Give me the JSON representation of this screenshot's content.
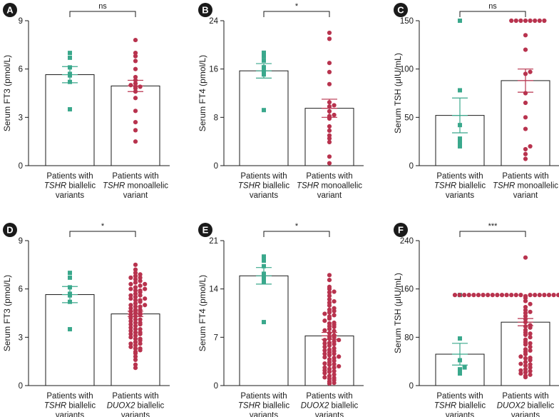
{
  "figure": {
    "colors": {
      "biallelic": "#3aa88c",
      "mono": "#b8334e",
      "badge": "#1a1a1a"
    }
  },
  "chart_data": [
    {
      "panel": "A",
      "type": "scatter-bar",
      "ylabel": "Serum FT3 (pmol/L)",
      "ylim": [
        0,
        9
      ],
      "yticks": [
        0,
        3,
        6,
        9
      ],
      "significance": "ns",
      "groups": [
        {
          "line1": "Patients with",
          "line2_italic": "TSHR",
          "line2_rest": " biallelic",
          "line3": "variants",
          "marker": "square",
          "color": "#3aa88c",
          "mean": 5.65,
          "sem": 0.5,
          "values": [
            7.0,
            6.7,
            6.1,
            5.7,
            5.6,
            5.2,
            3.5
          ]
        },
        {
          "line1": "Patients with",
          "line2_italic": "TSHR",
          "line2_rest": " monoallelic",
          "line3": "variant",
          "marker": "circle",
          "color": "#b8334e",
          "mean": 4.95,
          "sem": 0.35,
          "values": [
            7.8,
            7.0,
            6.8,
            6.5,
            6.0,
            5.5,
            5.3,
            5.1,
            5.0,
            4.9,
            4.9,
            4.8,
            4.6,
            4.2,
            3.4,
            2.7,
            2.2,
            1.5
          ]
        }
      ]
    },
    {
      "panel": "B",
      "type": "scatter-bar",
      "ylabel": "Serum FT4 (pmol/L)",
      "ylim": [
        0,
        24
      ],
      "yticks": [
        0,
        8,
        16,
        24
      ],
      "significance": "*",
      "groups": [
        {
          "line1": "Patients with",
          "line2_italic": "TSHR",
          "line2_rest": " biallelic",
          "line3": "variants",
          "marker": "square",
          "color": "#3aa88c",
          "mean": 15.7,
          "sem": 1.2,
          "values": [
            18.7,
            18.1,
            17.4,
            16.3,
            15.6,
            15.1,
            9.2
          ]
        },
        {
          "line1": "Patients with",
          "line2_italic": "TSHR",
          "line2_rest": " monoallelic",
          "line3": "variant",
          "marker": "circle",
          "color": "#b8334e",
          "mean": 9.5,
          "sem": 1.5,
          "values": [
            22.0,
            21.0,
            17.0,
            15.5,
            13.5,
            10.5,
            10.0,
            9.8,
            9.0,
            8.4,
            8.2,
            7.8,
            6.5,
            5.8,
            5.0,
            4.5,
            3.9,
            1.5,
            0.4
          ]
        }
      ]
    },
    {
      "panel": "C",
      "type": "scatter-bar",
      "ylabel": "Serum TSH (μIU/mL)",
      "ylim": [
        0,
        150
      ],
      "yticks": [
        0,
        50,
        100,
        150
      ],
      "significance": "ns",
      "groups": [
        {
          "line1": "Patients with",
          "line2_italic": "TSHR",
          "line2_rest": " biallelic",
          "line3": "variants",
          "marker": "square",
          "color": "#3aa88c",
          "mean": 52,
          "sem": 18,
          "values": [
            150,
            78,
            42,
            28,
            25,
            22,
            20
          ]
        },
        {
          "line1": "Patients with",
          "line2_italic": "TSHR",
          "line2_rest": " monoallelic",
          "line3": "variant",
          "marker": "circle",
          "color": "#b8334e",
          "mean": 88,
          "sem": 12,
          "values": [
            150,
            150,
            150,
            150,
            150,
            150,
            150,
            150,
            135,
            120,
            97,
            95,
            75,
            65,
            50,
            38,
            20,
            17,
            12,
            7
          ]
        }
      ]
    },
    {
      "panel": "D",
      "type": "scatter-bar",
      "ylabel": "Serum FT3 (pmol/L)",
      "ylim": [
        0,
        9
      ],
      "yticks": [
        0,
        3,
        6,
        9
      ],
      "significance": "*",
      "groups": [
        {
          "line1": "Patients with",
          "line2_italic": "TSHR",
          "line2_rest": " biallelic",
          "line3": "variants",
          "marker": "square",
          "color": "#3aa88c",
          "mean": 5.65,
          "sem": 0.5,
          "values": [
            7.0,
            6.7,
            6.1,
            5.7,
            5.6,
            5.2,
            3.5
          ]
        },
        {
          "line1": "Patients with",
          "line2_italic": "DUOX2",
          "line2_rest": " biallelic",
          "line3": "variants",
          "marker": "circle",
          "color": "#b8334e",
          "mean": 4.45,
          "sem": 0.17,
          "values": [
            7.5,
            7.2,
            7.0,
            6.9,
            6.8,
            6.7,
            6.6,
            6.5,
            6.4,
            6.3,
            6.2,
            6.1,
            6.0,
            5.9,
            5.8,
            5.7,
            5.6,
            5.5,
            5.4,
            5.3,
            5.2,
            5.1,
            5.0,
            4.9,
            4.8,
            4.7,
            4.6,
            4.5,
            4.4,
            4.3,
            4.2,
            4.1,
            4.0,
            3.9,
            3.8,
            3.7,
            3.6,
            3.5,
            3.4,
            3.3,
            3.2,
            3.1,
            3.0,
            2.9,
            2.8,
            2.7,
            2.6,
            2.5,
            2.4,
            2.3,
            2.2,
            2.1,
            2.0,
            1.8,
            1.6,
            1.3,
            1.1,
            6.3,
            5.9,
            5.6,
            5.3,
            5.0,
            4.7,
            4.4,
            4.1,
            3.8,
            3.5,
            3.2,
            2.9,
            2.6,
            2.3,
            6.7,
            6.0,
            5.4,
            4.9,
            4.5,
            3.9,
            3.3
          ]
        }
      ]
    },
    {
      "panel": "E",
      "type": "scatter-bar",
      "ylabel": "Serum FT4 (pmol/L)",
      "ylim": [
        0,
        21
      ],
      "yticks": [
        0,
        7,
        14,
        21
      ],
      "significance": "*",
      "groups": [
        {
          "line1": "Patients with",
          "line2_italic": "TSHR",
          "line2_rest": " biallelic",
          "line3": "variants",
          "marker": "square",
          "color": "#3aa88c",
          "mean": 15.9,
          "sem": 1.2,
          "values": [
            18.7,
            18.1,
            17.3,
            16.2,
            15.6,
            15.0,
            9.2
          ]
        },
        {
          "line1": "Patients with",
          "line2_italic": "DUOX2",
          "line2_rest": " biallelic",
          "line3": "variants",
          "marker": "circle",
          "color": "#b8334e",
          "mean": 7.2,
          "sem": 0.5,
          "values": [
            16.0,
            15.3,
            14.3,
            14.0,
            13.5,
            13.0,
            12.5,
            12.0,
            11.6,
            11.2,
            10.8,
            10.4,
            10.0,
            9.7,
            9.4,
            9.1,
            8.8,
            8.5,
            8.2,
            7.9,
            7.6,
            7.3,
            7.0,
            6.8,
            6.6,
            6.4,
            6.2,
            6.0,
            5.8,
            5.6,
            5.4,
            5.2,
            5.0,
            4.8,
            4.6,
            4.4,
            4.2,
            4.0,
            3.8,
            3.6,
            3.4,
            3.2,
            3.0,
            2.8,
            2.6,
            2.4,
            2.2,
            2.0,
            1.8,
            1.6,
            1.4,
            1.2,
            1.0,
            0.8,
            0.6,
            0.4,
            12.2,
            11.0,
            10.2,
            9.0,
            8.0,
            7.1,
            6.1,
            5.1,
            4.1,
            3.1,
            2.1,
            1.1,
            13.6,
            10.6,
            8.6,
            6.6,
            4.6,
            2.6,
            0.3
          ]
        }
      ]
    },
    {
      "panel": "F",
      "type": "scatter-bar",
      "ylabel": "Serum TSH (μIU/mL)",
      "ylim": [
        0,
        240
      ],
      "yticks": [
        0,
        80,
        160,
        240
      ],
      "significance": "***",
      "groups": [
        {
          "line1": "Patients with",
          "line2_italic": "TSHR",
          "line2_rest": " biallelic",
          "line3": "variants",
          "marker": "square",
          "color": "#3aa88c",
          "mean": 52,
          "sem": 18,
          "values": [
            150,
            78,
            42,
            30,
            27,
            25,
            20
          ]
        },
        {
          "line1": "Patients with",
          "line2_italic": "DUOX2",
          "line2_rest": " biallelic",
          "line3": "variants",
          "marker": "circle",
          "color": "#b8334e",
          "mean": 105,
          "sem": 6,
          "values": [
            212,
            150,
            150,
            150,
            150,
            150,
            150,
            150,
            150,
            150,
            150,
            150,
            150,
            150,
            150,
            150,
            150,
            150,
            150,
            150,
            150,
            150,
            150,
            150,
            150,
            150,
            150,
            150,
            148,
            145,
            140,
            135,
            130,
            125,
            120,
            115,
            110,
            105,
            100,
            96,
            92,
            88,
            84,
            80,
            76,
            72,
            68,
            64,
            60,
            56,
            52,
            48,
            45,
            42,
            39,
            36,
            33,
            30,
            27,
            24,
            22,
            20,
            18,
            16,
            14,
            122,
            98,
            86,
            70,
            58,
            46,
            35,
            25,
            150,
            150,
            150
          ]
        }
      ]
    }
  ]
}
